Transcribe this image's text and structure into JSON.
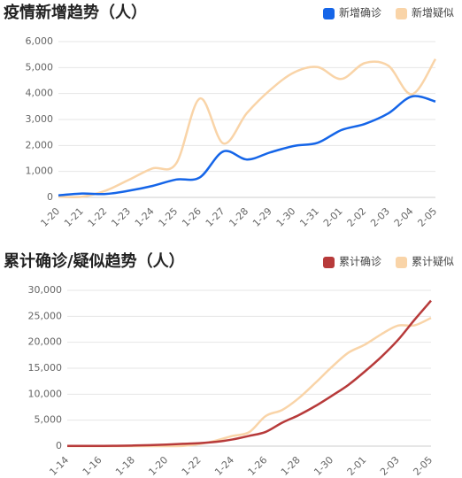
{
  "chart_data": [
    {
      "type": "line",
      "title": "疫情新增趋势（人）",
      "categories": [
        "1-20",
        "1-21",
        "1-22",
        "1-23",
        "1-24",
        "1-25",
        "1-26",
        "1-27",
        "1-28",
        "1-29",
        "1-30",
        "1-31",
        "2-01",
        "2-02",
        "2-03",
        "2-04",
        "2-05"
      ],
      "series": [
        {
          "name": "新增确诊",
          "color": "#1565e8",
          "values": [
            77,
            149,
            131,
            259,
            444,
            688,
            769,
            1771,
            1459,
            1737,
            1982,
            2102,
            2590,
            2829,
            3235,
            3887,
            3694
          ]
        },
        {
          "name": "新增疑似",
          "color": "#f9d4a8",
          "values": [
            27,
            26,
            257,
            680,
            1118,
            1309,
            3806,
            2077,
            3248,
            4148,
            4812,
            5019,
            4562,
            5173,
            5072,
            3971,
            5328
          ]
        }
      ],
      "ylim": [
        0,
        6000
      ],
      "yticks": [
        0,
        {
          "value": 1000,
          "label": "1,000"
        },
        {
          "value": 2000,
          "label": "2,000"
        },
        {
          "value": 3000,
          "label": "3,000"
        },
        {
          "value": 4000,
          "label": "4,000"
        },
        {
          "value": 5000,
          "label": "5,000"
        },
        {
          "value": 6000,
          "label": "6,000"
        }
      ],
      "grid": true,
      "legend": "top-right"
    },
    {
      "type": "line",
      "title": "累计确诊/疑似趋势（人）",
      "categories": [
        "1-14",
        null,
        "1-16",
        null,
        "1-18",
        null,
        "1-20",
        null,
        "1-22",
        null,
        "1-24",
        null,
        "1-26",
        null,
        "1-28",
        null,
        "1-30",
        null,
        "2-01",
        null,
        "2-03",
        null,
        "2-05"
      ],
      "series": [
        {
          "name": "累计确诊",
          "color": "#b73a3a",
          "values": [
            41,
            41,
            45,
            62,
            121,
            198,
            291,
            440,
            571,
            830,
            1287,
            1975,
            2744,
            4515,
            5974,
            7711,
            9692,
            11791,
            14380,
            17205,
            20438,
            24324,
            28018
          ]
        },
        {
          "name": "累计疑似",
          "color": "#f9d4a8",
          "values": [
            0,
            0,
            0,
            0,
            0,
            0,
            0,
            37,
            393,
            1072,
            1965,
            2684,
            5794,
            6973,
            9239,
            12167,
            15238,
            17988,
            19544,
            21558,
            23214,
            23260,
            24702
          ]
        }
      ],
      "ylim": [
        0,
        30000
      ],
      "yticks": [
        0,
        {
          "value": 5000,
          "label": "5,000"
        },
        {
          "value": 10000,
          "label": "10,000"
        },
        {
          "value": 15000,
          "label": "15,000"
        },
        {
          "value": 20000,
          "label": "20,000"
        },
        {
          "value": 25000,
          "label": "25,000"
        },
        {
          "value": 30000,
          "label": "30,000"
        }
      ],
      "grid": true,
      "legend": "top-right"
    }
  ]
}
